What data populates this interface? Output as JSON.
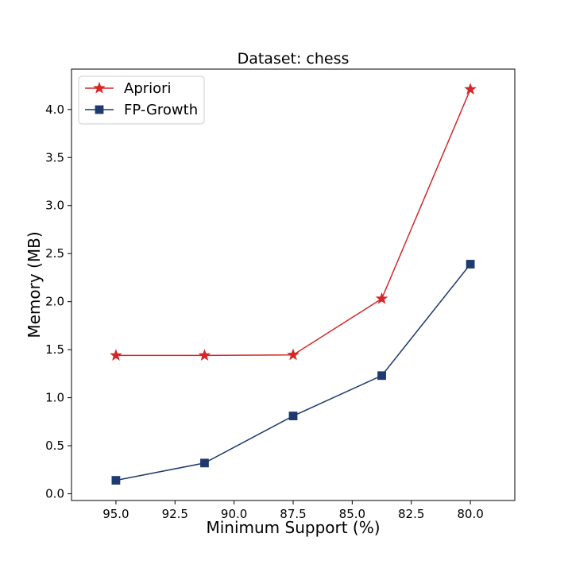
{
  "chart_data": {
    "type": "line",
    "title": "Dataset: chess",
    "xlabel": "Minimum Support (%)",
    "ylabel": "Memory (MB)",
    "x": [
      95.0,
      91.25,
      87.5,
      83.75,
      80.0
    ],
    "xlim": [
      96.88,
      78.12
    ],
    "ylim": [
      -0.07,
      4.42
    ],
    "x_ticks": [
      95.0,
      92.5,
      90.0,
      87.5,
      85.0,
      82.5,
      80.0
    ],
    "y_ticks": [
      0.0,
      0.5,
      1.0,
      1.5,
      2.0,
      2.5,
      3.0,
      3.5,
      4.0
    ],
    "x_tick_format": 1,
    "y_tick_format": 1,
    "grid": false,
    "legend_position": "upper-left",
    "series": [
      {
        "name": "Apriori",
        "values": [
          1.44,
          1.44,
          1.445,
          2.03,
          4.21
        ],
        "color": "#d62728",
        "marker": "star"
      },
      {
        "name": "FP-Growth",
        "values": [
          0.14,
          0.32,
          0.81,
          1.23,
          2.39
        ],
        "color": "#1f3a6e",
        "marker": "square"
      }
    ]
  }
}
